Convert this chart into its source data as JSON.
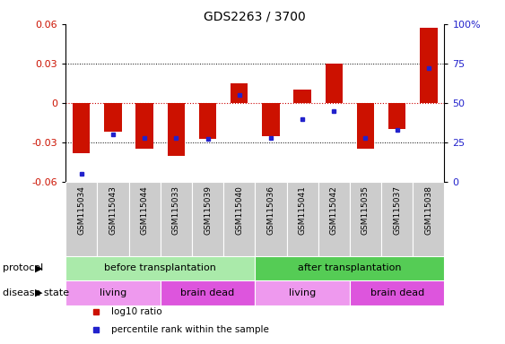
{
  "title": "GDS2263 / 3700",
  "samples": [
    "GSM115034",
    "GSM115043",
    "GSM115044",
    "GSM115033",
    "GSM115039",
    "GSM115040",
    "GSM115036",
    "GSM115041",
    "GSM115042",
    "GSM115035",
    "GSM115037",
    "GSM115038"
  ],
  "log10_ratio": [
    -0.038,
    -0.022,
    -0.035,
    -0.04,
    -0.027,
    0.015,
    -0.025,
    0.01,
    0.03,
    -0.035,
    -0.02,
    0.057
  ],
  "percentile_rank": [
    0.05,
    0.3,
    0.28,
    0.28,
    0.27,
    0.55,
    0.28,
    0.4,
    0.45,
    0.28,
    0.33,
    0.72
  ],
  "ylim": [
    -0.06,
    0.06
  ],
  "yticks": [
    -0.06,
    -0.03,
    0.0,
    0.03,
    0.06
  ],
  "ytick_labels": [
    "-0.06",
    "-0.03",
    "0",
    "0.03",
    "0.06"
  ],
  "y2ticks": [
    0,
    25,
    50,
    75,
    100
  ],
  "y2ticklabels": [
    "0",
    "25",
    "50",
    "75",
    "100%"
  ],
  "bar_color": "#CC1100",
  "dot_color": "#2222CC",
  "protocol_groups": [
    {
      "label": "before transplantation",
      "start": 0,
      "end": 6,
      "color": "#AAEAAA"
    },
    {
      "label": "after transplantation",
      "start": 6,
      "end": 12,
      "color": "#55CC55"
    }
  ],
  "disease_groups": [
    {
      "label": "living",
      "start": 0,
      "end": 3,
      "color": "#EE99EE"
    },
    {
      "label": "brain dead",
      "start": 3,
      "end": 6,
      "color": "#DD55DD"
    },
    {
      "label": "living",
      "start": 6,
      "end": 9,
      "color": "#EE99EE"
    },
    {
      "label": "brain dead",
      "start": 9,
      "end": 12,
      "color": "#DD55DD"
    }
  ],
  "legend_items": [
    {
      "label": "log10 ratio",
      "color": "#CC1100"
    },
    {
      "label": "percentile rank within the sample",
      "color": "#2222CC"
    }
  ],
  "protocol_label": "protocol",
  "disease_label": "disease state",
  "bg_color": "#FFFFFF",
  "zero_line_color": "#CC0000",
  "sample_bg_color": "#CCCCCC"
}
